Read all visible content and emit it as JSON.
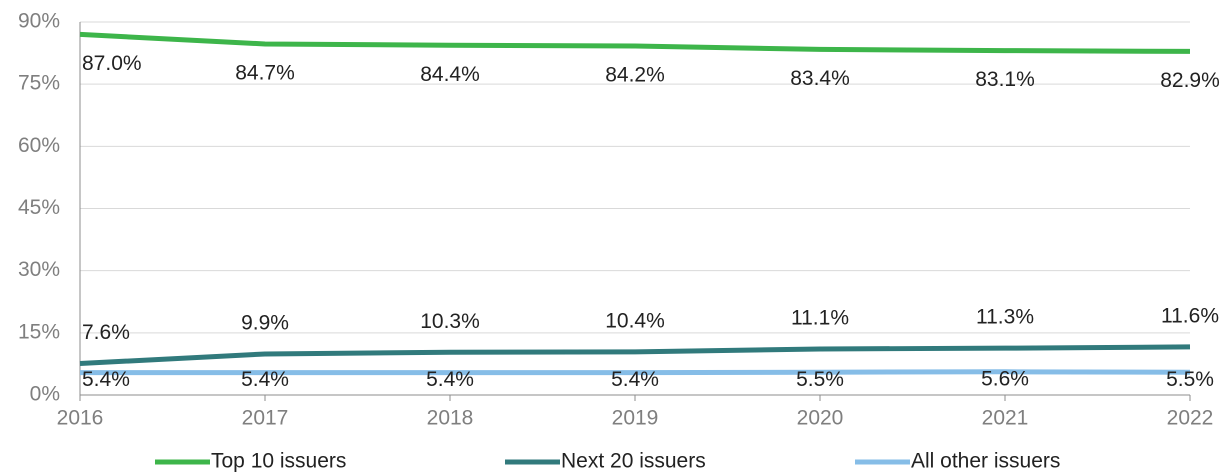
{
  "chart_data": {
    "type": "line",
    "x": [
      2016,
      2017,
      2018,
      2019,
      2020,
      2021,
      2022
    ],
    "xlim": [
      2016,
      2022
    ],
    "xticks": [
      2016,
      2017,
      2018,
      2019,
      2020,
      2021,
      2022
    ],
    "ylim": [
      0,
      90
    ],
    "yticks": [
      {
        "value": 0,
        "label": "0%"
      },
      {
        "value": 15,
        "label": "15%"
      },
      {
        "value": 30,
        "label": "30%"
      },
      {
        "value": 45,
        "label": "45%"
      },
      {
        "value": 60,
        "label": "60%"
      },
      {
        "value": 75,
        "label": "75%"
      },
      {
        "value": 90,
        "label": "90%"
      }
    ],
    "grid": true,
    "legend": "bottom",
    "series": [
      {
        "name": "Top 10 issuers",
        "color": "#3db54a",
        "values": [
          87.0,
          84.7,
          84.4,
          84.2,
          83.4,
          83.1,
          82.9
        ],
        "value_labels": [
          "87.0%",
          "84.7%",
          "84.4%",
          "84.2%",
          "83.4%",
          "83.1%",
          "82.9%"
        ]
      },
      {
        "name": "Next 20 issuers",
        "color": "#317a7c",
        "values": [
          7.6,
          9.9,
          10.3,
          10.4,
          11.1,
          11.3,
          11.6
        ],
        "value_labels": [
          "7.6%",
          "9.9%",
          "10.3%",
          "10.4%",
          "11.1%",
          "11.3%",
          "11.6%"
        ]
      },
      {
        "name": "All other issuers",
        "color": "#86bde7",
        "values": [
          5.4,
          5.4,
          5.4,
          5.4,
          5.5,
          5.6,
          5.5
        ],
        "value_labels": [
          "5.4%",
          "5.4%",
          "5.4%",
          "5.4%",
          "5.5%",
          "5.6%",
          "5.5%"
        ]
      }
    ]
  }
}
